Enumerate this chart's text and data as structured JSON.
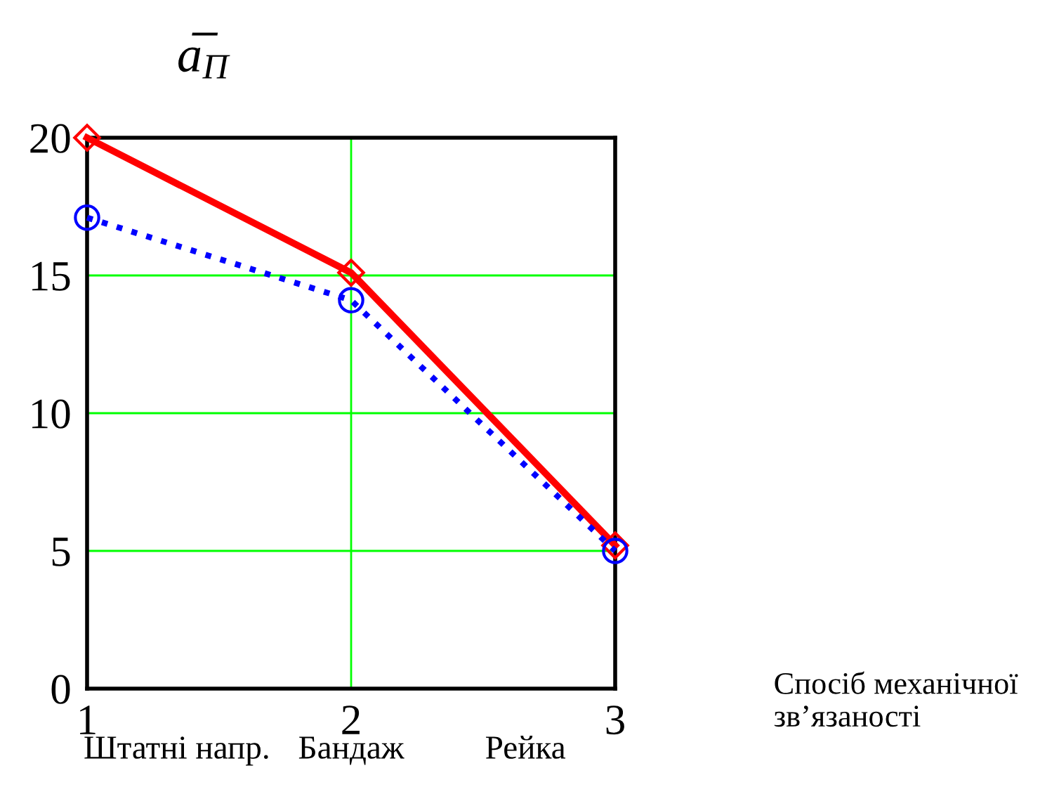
{
  "chart_data": {
    "type": "line",
    "ylabel": "a̅$_{П}$",
    "xlabel": "Спосіб механічної зв’язаності",
    "x": [
      1,
      2,
      3
    ],
    "series": [
      {
        "color": "#ff0000",
        "values": [
          20,
          15.1,
          5.2
        ],
        "marker": "diamond",
        "line_style": "solid"
      },
      {
        "color": "#0000ff",
        "values": [
          17.1,
          14.1,
          5.0
        ],
        "marker": "circle",
        "line_style": "dotted"
      }
    ],
    "xlim": [
      1,
      3
    ],
    "xticks": [
      1,
      2,
      3
    ],
    "ylim": [
      0,
      20
    ],
    "yticks": [
      0,
      5,
      10,
      15,
      20
    ],
    "grid": true,
    "annotations": [
      "Штатні напр.",
      "Бандаж",
      "Рейка"
    ]
  }
}
